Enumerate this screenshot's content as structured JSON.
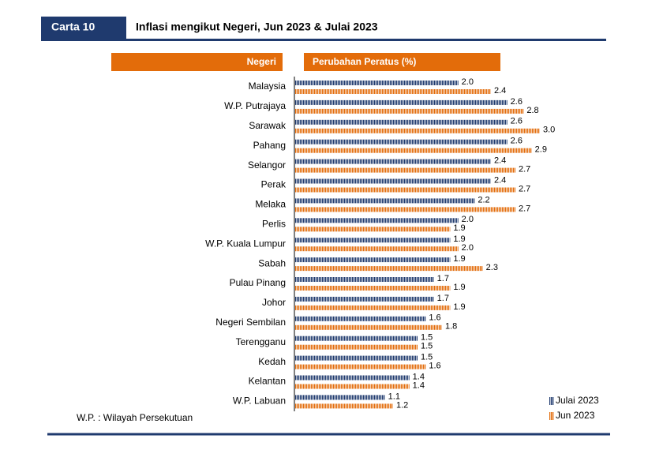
{
  "header": {
    "label": "Carta 10",
    "title": "Inflasi mengikut Negeri, Jun 2023 & Julai 2023"
  },
  "chart_data": {
    "type": "bar",
    "orientation": "horizontal",
    "category_header": "Negeri",
    "value_header": "Perubahan Peratus (%)",
    "categories": [
      "Malaysia",
      "W.P. Putrajaya",
      "Sarawak",
      "Pahang",
      "Selangor",
      "Perak",
      "Melaka",
      "Perlis",
      "W.P. Kuala Lumpur",
      "Sabah",
      "Pulau Pinang",
      "Johor",
      "Negeri Sembilan",
      "Terengganu",
      "Kedah",
      "Kelantan",
      "W.P. Labuan"
    ],
    "series": [
      {
        "name": "Julai 2023",
        "color": "#1f3a6e",
        "values": [
          2.0,
          2.6,
          2.6,
          2.6,
          2.4,
          2.4,
          2.2,
          2.0,
          1.9,
          1.9,
          1.7,
          1.7,
          1.6,
          1.5,
          1.5,
          1.4,
          1.1
        ],
        "value_labels": [
          "2.0",
          "2.6",
          "2.6",
          "2.6",
          "2.4",
          "2.4",
          "2.2",
          "2.0",
          "1.9",
          "1.9",
          "1.7",
          "1.7",
          "1.6",
          "1.5",
          "1.5",
          "1.4",
          "1.1"
        ]
      },
      {
        "name": "Jun 2023",
        "color": "#e36c0a",
        "values": [
          2.4,
          2.8,
          3.0,
          2.9,
          2.7,
          2.7,
          2.7,
          1.9,
          2.0,
          2.3,
          1.9,
          1.9,
          1.8,
          1.5,
          1.6,
          1.4,
          1.2
        ],
        "value_labels": [
          "2.4",
          "2.8",
          "3.0",
          "2.9",
          "2.7",
          "2.7",
          "2.7",
          "1.9",
          "2.0",
          "2.3",
          "1.9",
          "1.9",
          "1.8",
          "1.5",
          "1.6",
          "1.4",
          "1.2"
        ]
      }
    ],
    "legend": "lower right",
    "footnote": "W.P. : Wilayah Persekutuan"
  }
}
